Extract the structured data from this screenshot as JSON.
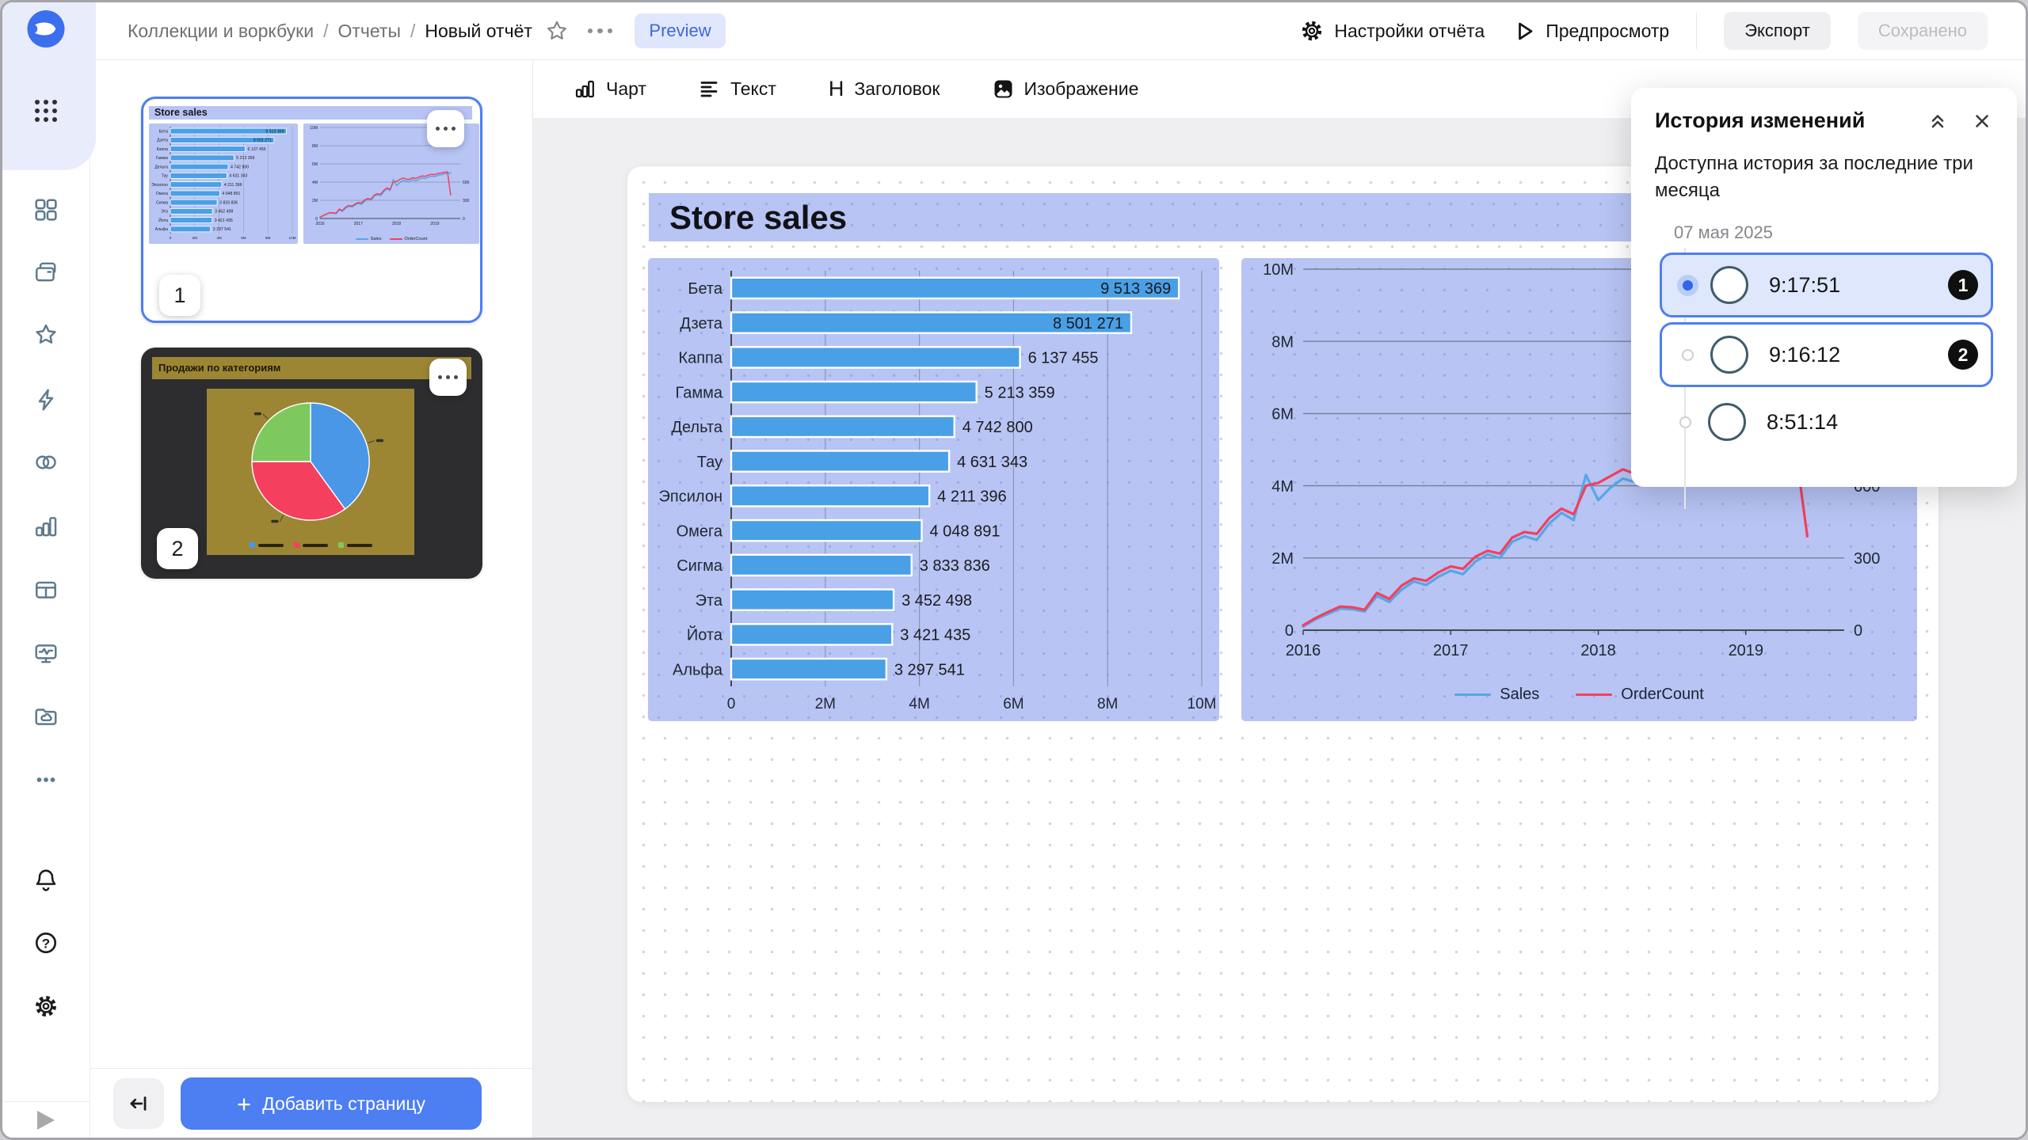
{
  "topbar": {
    "breadcrumb": {
      "items": [
        "Коллекции и воркбуки",
        "Отчеты",
        "Новый отчёт"
      ],
      "separator": "/"
    },
    "preview_badge": "Preview",
    "settings_label": "Настройки отчёта",
    "preview_label": "Предпросмотр",
    "export_label": "Экспорт",
    "saved_label": "Сохранено"
  },
  "sidebar": {
    "help_glyph": "?",
    "icons": [
      "datalens-logo",
      "apps-grid",
      "dashboards",
      "collections",
      "favorites",
      "connections",
      "datasets",
      "charts",
      "tables",
      "dashboards-monitor",
      "cloud-folder",
      "more",
      "notifications",
      "help",
      "settings",
      "expand"
    ]
  },
  "pages_panel": {
    "pages": [
      {
        "number": "1",
        "title": "Store sales"
      },
      {
        "number": "2",
        "title": "Продажи по категориям"
      }
    ],
    "add_page_plus": "+",
    "add_page_label": "Добавить страницу"
  },
  "toolbar": {
    "items": [
      {
        "label": "Чарт"
      },
      {
        "label": "Текст"
      },
      {
        "label": "Заголовок",
        "icon_glyph": "H"
      },
      {
        "label": "Изображение"
      }
    ]
  },
  "page": {
    "title": "Store sales"
  },
  "history_panel": {
    "title": "История изменений",
    "subtitle": "Доступна история за последние три месяца",
    "date": "07 мая 2025",
    "entries": [
      {
        "time": "9:17:51",
        "badge": "1",
        "selected": true
      },
      {
        "time": "9:16:12",
        "badge": "2",
        "selected": false
      },
      {
        "time": "8:51:14",
        "badge": "",
        "selected": false
      }
    ]
  },
  "chart_data": [
    {
      "id": "store-sales-bar",
      "type": "bar",
      "orientation": "horizontal",
      "categories": [
        "Бета",
        "Дзета",
        "Каппа",
        "Гамма",
        "Дельта",
        "Тау",
        "Эпсилон",
        "Омега",
        "Сигма",
        "Эта",
        "Йота",
        "Альфа"
      ],
      "values": [
        9513369,
        8501271,
        6137455,
        5213359,
        4742800,
        4631343,
        4211396,
        4048891,
        3833836,
        3452498,
        3421435,
        3297541
      ],
      "value_labels": [
        "9 513 369",
        "8 501 271",
        "6 137 455",
        "5 213 359",
        "4 742 800",
        "4 631 343",
        "4 211 396",
        "4 048 891",
        "3 833 836",
        "3 452 498",
        "3 421 435",
        "3 297 541"
      ],
      "x_ticks": [
        "0",
        "2M",
        "4M",
        "6M",
        "8M",
        "10M"
      ],
      "xlim": [
        0,
        10000000
      ],
      "bar_color": "#49a0e6",
      "grid": true
    },
    {
      "id": "sales-orders-line",
      "type": "line",
      "x_ticks": [
        "2016",
        "2017",
        "2018",
        "2019"
      ],
      "x_tick_positions": [
        0,
        12,
        24,
        36
      ],
      "x_domain": [
        0,
        44
      ],
      "y_left_ticks": [
        "0",
        "2M",
        "4M",
        "6M",
        "8M",
        "10M"
      ],
      "y_left_lim": [
        0,
        10000000
      ],
      "y_right_ticks": [
        "0",
        "300",
        "600"
      ],
      "y_right_lim": [
        0,
        1500
      ],
      "legend_position": "bottom",
      "series": [
        {
          "name": "Sales",
          "axis": "left",
          "color": "#55a7e4",
          "values_millions": [
            0.1,
            0.3,
            0.45,
            0.6,
            0.58,
            0.52,
            0.95,
            0.78,
            1.12,
            1.35,
            1.25,
            1.48,
            1.65,
            1.55,
            1.9,
            2.1,
            2.0,
            2.45,
            2.6,
            2.5,
            2.95,
            3.25,
            3.05,
            4.3,
            3.6,
            3.95,
            4.2,
            4.1,
            4.05,
            4.25,
            4.15,
            4.3,
            4.45,
            4.4,
            4.55,
            4.65,
            4.6,
            4.75,
            4.8,
            4.9,
            4.95,
            5.0
          ]
        },
        {
          "name": "OrderCount",
          "axis": "right",
          "color": "#f43f5e",
          "values": [
            20,
            50,
            75,
            98,
            95,
            85,
            155,
            130,
            185,
            215,
            205,
            240,
            265,
            255,
            305,
            330,
            318,
            385,
            408,
            400,
            465,
            505,
            482,
            600,
            612,
            640,
            668,
            650,
            645,
            672,
            660,
            682,
            700,
            695,
            715,
            728,
            722,
            742,
            750,
            762,
            768,
            390
          ]
        }
      ]
    },
    {
      "id": "sales-by-category-pie",
      "type": "pie",
      "title": "Продажи по категориям",
      "slices": [
        {
          "color": "#4a97e8",
          "fraction": 0.4
        },
        {
          "color": "#f43f5e",
          "fraction": 0.35
        },
        {
          "color": "#7ec95e",
          "fraction": 0.25
        }
      ]
    }
  ],
  "colors": {
    "accent": "#4d7ef2",
    "periwinkle": "#b7c4f4",
    "canvas": "#efeff1",
    "bar": "#49a0e6",
    "sales_line": "#55a7e4",
    "orders_line": "#f43f5e",
    "thumb_dark_bg": "#2d2d2f",
    "thumb_olive": "#9c8634"
  }
}
